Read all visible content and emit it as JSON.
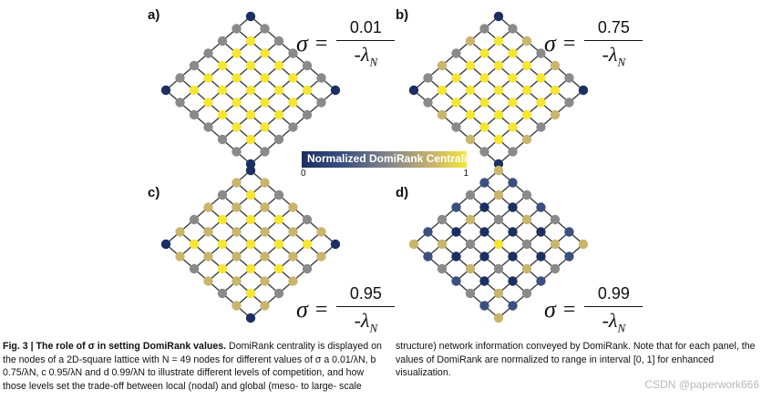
{
  "panels": [
    {
      "label": "a)",
      "sigma_symbol": "σ",
      "equals": "=",
      "numerator": "0.01",
      "denominator": "-λ",
      "denominator_sub": "N",
      "scheme": "a"
    },
    {
      "label": "b)",
      "sigma_symbol": "σ",
      "equals": "=",
      "numerator": "0.75",
      "denominator": "-λ",
      "denominator_sub": "N",
      "scheme": "b"
    },
    {
      "label": "c)",
      "sigma_symbol": "σ",
      "equals": "=",
      "numerator": "0.95",
      "denominator": "-λ",
      "denominator_sub": "N",
      "scheme": "c"
    },
    {
      "label": "d)",
      "sigma_symbol": "σ",
      "equals": "=",
      "numerator": "0.99",
      "denominator": "-λ",
      "denominator_sub": "N",
      "scheme": "d"
    }
  ],
  "colorbar": {
    "title": "Normalized DomiRank Centrality",
    "min_label": "0",
    "max_label": "1"
  },
  "caption": {
    "fig_label": "Fig. 3 | The role of σ in setting DomiRank values.",
    "left_text": "DomiRank centrality is displayed on the nodes of a 2D-square lattice with N = 49 nodes for different values of σ a 0.01/λN, b 0.75/λN, c 0.95/λN and d 0.99/λN to illustrate different levels of competition, and how those levels set the trade-off between local (nodal) and global (meso- to large- scale",
    "right_text": "structure) network information conveyed by DomiRank. Note that for each panel, the values of DomiRank are normalized to range in interval [0, 1] for enhanced visualization."
  },
  "watermark": "CSDN @paperwork666",
  "colors": {
    "low": "#1c2f63",
    "mid_low": "#3b4f80",
    "mid": "#8a8a8a",
    "mid_high": "#c9b56b",
    "high": "#f5e634",
    "edge": "#3a3a3a"
  }
}
